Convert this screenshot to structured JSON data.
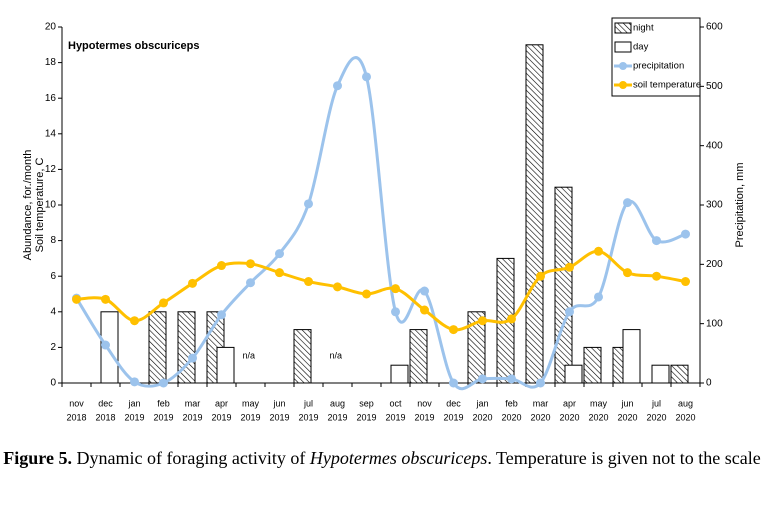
{
  "chart_data": {
    "type": "bar-line",
    "subtitle": "Hypotermes obscuriceps",
    "ylabel": [
      "Abundance, for./month",
      "Soil temperature, C"
    ],
    "y2label": "Precipitation, mm",
    "categories": [
      [
        "nov",
        "2018"
      ],
      [
        "dec",
        "2018"
      ],
      [
        "jan",
        "2019"
      ],
      [
        "feb",
        "2019"
      ],
      [
        "mar",
        "2019"
      ],
      [
        "apr",
        "2019"
      ],
      [
        "may",
        "2019"
      ],
      [
        "jun",
        "2019"
      ],
      [
        "jul",
        "2019"
      ],
      [
        "aug",
        "2019"
      ],
      [
        "sep",
        "2019"
      ],
      [
        "oct",
        "2019"
      ],
      [
        "nov",
        "2019"
      ],
      [
        "dec",
        "2019"
      ],
      [
        "jan",
        "2020"
      ],
      [
        "feb",
        "2020"
      ],
      [
        "mar",
        "2020"
      ],
      [
        "apr",
        "2020"
      ],
      [
        "may",
        "2020"
      ],
      [
        "jun",
        "2020"
      ],
      [
        "jul",
        "2020"
      ],
      [
        "aug",
        "2020"
      ]
    ],
    "series": [
      {
        "name": "night",
        "kind": "bar",
        "pattern": "hatch",
        "color": "#000000",
        "values": [
          null,
          null,
          null,
          4,
          4,
          4,
          null,
          null,
          3,
          null,
          null,
          null,
          3,
          null,
          4,
          7,
          19,
          11,
          2,
          2,
          null,
          1
        ]
      },
      {
        "name": "day",
        "kind": "bar",
        "color": "#ffffff",
        "values": [
          null,
          4,
          null,
          null,
          null,
          2,
          null,
          null,
          null,
          null,
          null,
          1,
          null,
          null,
          null,
          null,
          null,
          1,
          null,
          3,
          1,
          null
        ]
      },
      {
        "name": "precipitation",
        "kind": "line",
        "axis": "y2",
        "color": "#9cc3ec",
        "values": [
          143,
          64,
          2,
          0,
          42,
          115,
          169,
          218,
          302,
          501,
          516,
          120,
          155,
          0,
          7,
          7,
          0,
          120,
          145,
          304,
          240,
          251
        ]
      },
      {
        "name": "soil temperature",
        "kind": "line",
        "color": "#ffc000",
        "values": [
          4.7,
          4.7,
          3.5,
          4.5,
          5.6,
          6.6,
          6.7,
          6.2,
          5.7,
          5.4,
          5.0,
          5.3,
          4.1,
          3.0,
          3.5,
          3.6,
          6.0,
          6.5,
          7.4,
          6.2,
          6.0,
          5.7
        ]
      }
    ],
    "annotations": [
      "n/a",
      "n/a"
    ],
    "ylim": [
      0,
      20
    ],
    "yticks": [
      0,
      2,
      4,
      6,
      8,
      10,
      12,
      14,
      16,
      18,
      20
    ],
    "y2lim": [
      0,
      600
    ],
    "y2ticks": [
      0,
      100,
      200,
      300,
      400,
      500,
      600
    ],
    "legend": "top-right"
  },
  "caption": {
    "label": "Figure 5.",
    "text1": " Dynamic of foraging activity of ",
    "species": "Hypotermes obscuriceps",
    "text2": ". Temperature is given not to the scale"
  }
}
